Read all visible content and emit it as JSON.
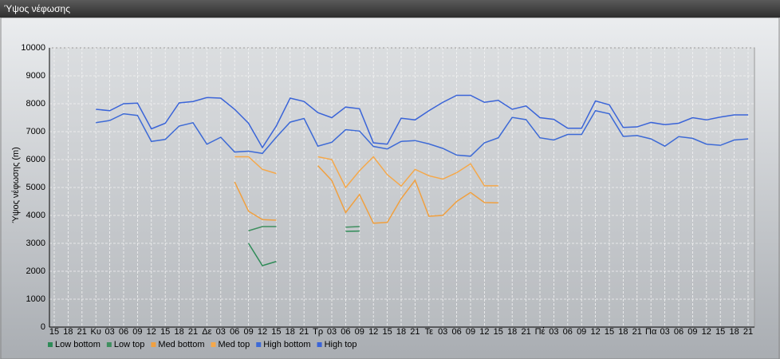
{
  "chart_data": {
    "type": "line",
    "title": "Ύψος νέφωσης",
    "y_label": "Ύψος νέφωσης (m)",
    "categories": [
      "15",
      "18",
      "21",
      "Κυ",
      "03",
      "06",
      "09",
      "12",
      "15",
      "18",
      "21",
      "Δε",
      "03",
      "06",
      "09",
      "12",
      "15",
      "18",
      "21",
      "Τρ",
      "03",
      "06",
      "09",
      "12",
      "15",
      "18",
      "21",
      "Τε",
      "03",
      "06",
      "09",
      "12",
      "15",
      "18",
      "21",
      "Πέ",
      "03",
      "06",
      "09",
      "12",
      "15",
      "18",
      "21",
      "Πα",
      "03",
      "06",
      "09",
      "12",
      "15",
      "18",
      "21"
    ],
    "ylim": [
      0,
      10000
    ],
    "yticks": [
      0,
      1000,
      2000,
      3000,
      4000,
      5000,
      6000,
      7000,
      8000,
      9000,
      10000
    ],
    "grid": true,
    "legend": "bottom-left",
    "series": [
      {
        "name": "Low bottom",
        "color": "#2e8b57",
        "values": [
          null,
          null,
          null,
          null,
          null,
          null,
          null,
          null,
          null,
          null,
          null,
          null,
          null,
          null,
          3000,
          2200,
          2350,
          null,
          null,
          null,
          null,
          3430,
          3440,
          null,
          null,
          null,
          null,
          null,
          null,
          null,
          null,
          null,
          null,
          null,
          null,
          null,
          null,
          null,
          null,
          null,
          null,
          null,
          null,
          null,
          null,
          null,
          null,
          null,
          null,
          null,
          null
        ]
      },
      {
        "name": "Low top",
        "color": "#3f8f5f",
        "values": [
          null,
          null,
          null,
          null,
          null,
          null,
          null,
          null,
          null,
          null,
          null,
          null,
          null,
          null,
          3450,
          3600,
          3600,
          null,
          null,
          null,
          null,
          3580,
          3600,
          null,
          null,
          null,
          null,
          null,
          null,
          null,
          null,
          null,
          null,
          null,
          null,
          null,
          null,
          null,
          null,
          null,
          null,
          null,
          null,
          null,
          null,
          null,
          null,
          null,
          null,
          null,
          null
        ]
      },
      {
        "name": "Med bottom",
        "color": "#f0a040",
        "values": [
          null,
          null,
          null,
          null,
          null,
          null,
          null,
          null,
          null,
          null,
          null,
          null,
          null,
          5200,
          4150,
          3850,
          3830,
          null,
          null,
          5780,
          5250,
          4100,
          4750,
          3720,
          3750,
          4600,
          5260,
          3970,
          4000,
          4500,
          4820,
          4460,
          4450,
          null,
          null,
          null,
          null,
          null,
          null,
          null,
          null,
          null,
          null,
          null,
          null,
          null,
          null,
          null,
          null,
          null,
          null
        ]
      },
      {
        "name": "Med top",
        "color": "#f5a84a",
        "values": [
          null,
          null,
          null,
          null,
          null,
          null,
          null,
          null,
          null,
          null,
          null,
          null,
          null,
          6100,
          6100,
          5650,
          5500,
          null,
          null,
          6100,
          6000,
          5000,
          5600,
          6100,
          5460,
          5050,
          5650,
          5420,
          5300,
          5530,
          5850,
          5060,
          5060,
          null,
          null,
          null,
          null,
          null,
          null,
          null,
          null,
          null,
          null,
          null,
          null,
          null,
          null,
          null,
          null,
          null,
          null
        ]
      },
      {
        "name": "High bottom",
        "color": "#3d6ad6",
        "values": [
          null,
          null,
          null,
          7320,
          7400,
          7640,
          7580,
          6650,
          6720,
          7200,
          7320,
          6550,
          6800,
          6270,
          6300,
          6220,
          6800,
          7340,
          7470,
          6480,
          6620,
          7070,
          7020,
          6470,
          6380,
          6650,
          6680,
          6560,
          6400,
          6160,
          6120,
          6600,
          6780,
          7510,
          7430,
          6780,
          6700,
          6900,
          6900,
          7750,
          7640,
          6830,
          6860,
          6740,
          6480,
          6820,
          6760,
          6550,
          6510,
          6700,
          6740
        ]
      },
      {
        "name": "High top",
        "color": "#3a64d8",
        "values": [
          null,
          null,
          null,
          7800,
          7750,
          8000,
          8020,
          7100,
          7300,
          8030,
          8080,
          8220,
          8200,
          7800,
          7300,
          6430,
          7200,
          8200,
          8080,
          7680,
          7500,
          7880,
          7820,
          6600,
          6550,
          7480,
          7420,
          7750,
          8050,
          8300,
          8300,
          8050,
          8120,
          7800,
          7920,
          7500,
          7440,
          7120,
          7120,
          8100,
          7960,
          7150,
          7170,
          7330,
          7250,
          7300,
          7500,
          7420,
          7520,
          7600,
          7600
        ]
      }
    ]
  }
}
